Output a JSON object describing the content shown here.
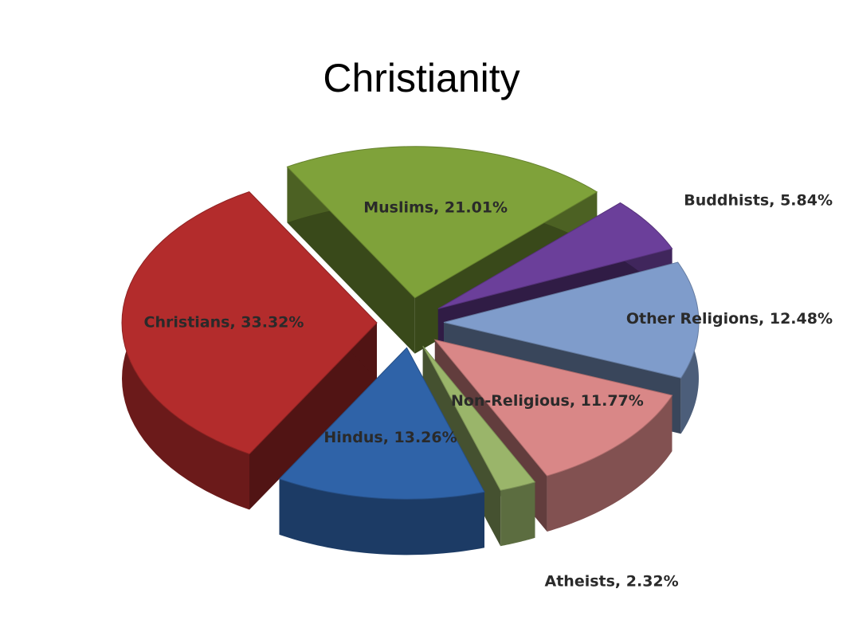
{
  "chart_data": {
    "type": "pie3d",
    "title": "Christianity",
    "values": [
      33.32,
      21.01,
      5.84,
      12.48,
      11.77,
      2.32,
      13.26
    ],
    "value_labels": [
      "Christians, 33.32%",
      "Muslims, 21.01%",
      "Buddhists, 5.84%",
      "Other Religions, 12.48%",
      "Non-Religious, 11.77%",
      "Atheists, 2.32%",
      "Hindus, 13.26%"
    ],
    "colors": [
      "#b32c2c",
      "#7fa23a",
      "#6b3f9a",
      "#7f9ccb",
      "#d98787",
      "#9ab56a",
      "#2f63a8"
    ]
  }
}
